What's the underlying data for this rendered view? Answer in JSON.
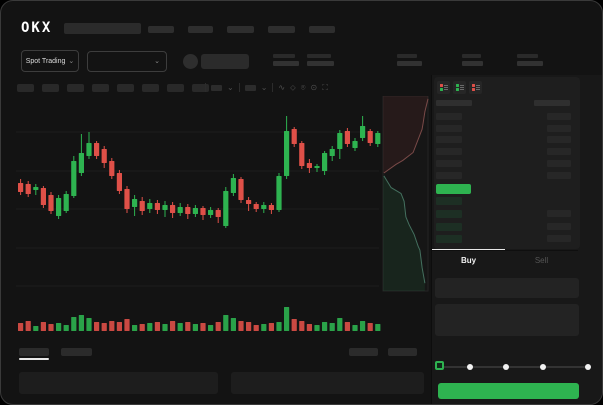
{
  "app": {
    "name": "OKX"
  },
  "colors": {
    "background": "#131313",
    "panel": "#181818",
    "surface": "#1e1e1e",
    "green": "#2eb350",
    "red": "#df5048",
    "bid_row_green": "#1d2f24",
    "grid_line": "#1d1d1d",
    "text_primary": "#eaeaea",
    "text_muted": "#555555"
  },
  "header": {
    "logo_text": "OKX",
    "search_placeholder": "",
    "nav_pill_count": 5
  },
  "subheader": {
    "market_selector_label": "Spot Trading",
    "market_selector_chevron": "⌄",
    "pair_selector_value": "",
    "pair_selector_chevron": "⌄",
    "stat_count": 5
  },
  "toolbar": {
    "pill_count": 8,
    "icons": [
      "interval-dropdown",
      "chart-type-dropdown",
      "wave-line-tool",
      "draw-tool",
      "camera",
      "history",
      "fullscreen"
    ],
    "icon_glyphs": {
      "wave": "∿",
      "draw": "⬦",
      "camera": "⌾",
      "history": "⊙",
      "fullscreen": "⛶",
      "chevron": "⌄"
    }
  },
  "orderbook": {
    "toggle_icons": [
      "book-combined",
      "book-bids",
      "book-asks"
    ],
    "ask_rows": 6,
    "bid_rows": 4,
    "bid_right_bar_present": [
      false,
      true,
      true,
      true
    ],
    "last_price_highlight_color": "#2eb350"
  },
  "trade_panel": {
    "tabs": [
      {
        "label": "Buy",
        "active": true
      },
      {
        "label": "Sell",
        "active": false
      }
    ],
    "slider": {
      "percent": 0,
      "stops": 5
    },
    "submit_button_color": "#2eb350"
  },
  "bottom_bar": {
    "left_tab_count": 2,
    "right_tab_count": 2,
    "active_tab_index": 0,
    "panel_count": 2
  },
  "chart_data": {
    "type": "candlestick",
    "title": "",
    "xlabel": "",
    "ylabel": "",
    "ylim": [
      0,
      120
    ],
    "grid": "horizontal",
    "x_count": 48,
    "candles_ohlc": [
      [
        48,
        52,
        36,
        39
      ],
      [
        47,
        50,
        34,
        37
      ],
      [
        41,
        47,
        36,
        44
      ],
      [
        43,
        45,
        23,
        26
      ],
      [
        36,
        39,
        17,
        20
      ],
      [
        15,
        36,
        12,
        33
      ],
      [
        20,
        40,
        18,
        37
      ],
      [
        35,
        75,
        33,
        70
      ],
      [
        58,
        97,
        55,
        78
      ],
      [
        75,
        99,
        72,
        88
      ],
      [
        88,
        90,
        72,
        75
      ],
      [
        82,
        85,
        63,
        68
      ],
      [
        70,
        73,
        52,
        55
      ],
      [
        58,
        61,
        37,
        40
      ],
      [
        42,
        45,
        18,
        22
      ],
      [
        24,
        36,
        15,
        32
      ],
      [
        30,
        34,
        16,
        20
      ],
      [
        22,
        32,
        18,
        28
      ],
      [
        28,
        31,
        17,
        21
      ],
      [
        21,
        30,
        14,
        26
      ],
      [
        26,
        29,
        13,
        18
      ],
      [
        18,
        28,
        15,
        24
      ],
      [
        24,
        27,
        12,
        17
      ],
      [
        17,
        26,
        14,
        23
      ],
      [
        23,
        25,
        11,
        16
      ],
      [
        16,
        24,
        13,
        21
      ],
      [
        21,
        23,
        8,
        14
      ],
      [
        5,
        44,
        3,
        40
      ],
      [
        38,
        57,
        35,
        53
      ],
      [
        52,
        54,
        28,
        31
      ],
      [
        31,
        34,
        20,
        27
      ],
      [
        27,
        29,
        19,
        22
      ],
      [
        22,
        29,
        18,
        26
      ],
      [
        26,
        28,
        17,
        21
      ],
      [
        21,
        58,
        19,
        55
      ],
      [
        55,
        115,
        52,
        100
      ],
      [
        102,
        104,
        84,
        87
      ],
      [
        88,
        90,
        62,
        65
      ],
      [
        68,
        72,
        58,
        63
      ],
      [
        63,
        67,
        59,
        65
      ],
      [
        60,
        80,
        56,
        78
      ],
      [
        75,
        85,
        70,
        82
      ],
      [
        82,
        101,
        72,
        98
      ],
      [
        100,
        103,
        84,
        87
      ],
      [
        83,
        93,
        80,
        90
      ],
      [
        93,
        115,
        90,
        105
      ],
      [
        100,
        102,
        85,
        88
      ],
      [
        87,
        100,
        84,
        98
      ]
    ],
    "volumes": [
      8,
      10,
      5,
      9,
      7,
      8,
      6,
      14,
      16,
      13,
      9,
      8,
      10,
      9,
      12,
      6,
      7,
      8,
      9,
      7,
      10,
      8,
      9,
      7,
      8,
      6,
      9,
      16,
      13,
      10,
      9,
      6,
      7,
      8,
      9,
      24,
      12,
      10,
      7,
      6,
      9,
      8,
      13,
      9,
      6,
      10,
      8,
      7
    ],
    "depth_overlay": {
      "asks_line": [
        [
          1,
          0.015
        ],
        [
          0.93,
          0.08
        ],
        [
          0.89,
          0.14
        ],
        [
          0.87,
          0.17
        ],
        [
          0.67,
          0.29
        ],
        [
          0.44,
          0.33
        ],
        [
          0.29,
          0.35
        ],
        [
          0.02,
          0.395
        ]
      ],
      "bids_line": [
        [
          0.02,
          0.41
        ],
        [
          0.18,
          0.47
        ],
        [
          0.4,
          0.5
        ],
        [
          0.47,
          0.54
        ],
        [
          0.51,
          0.62
        ],
        [
          0.58,
          0.66
        ],
        [
          0.69,
          0.71
        ],
        [
          0.78,
          0.77
        ],
        [
          0.82,
          0.79
        ],
        [
          0.87,
          0.88
        ],
        [
          0.93,
          0.96
        ]
      ]
    }
  }
}
